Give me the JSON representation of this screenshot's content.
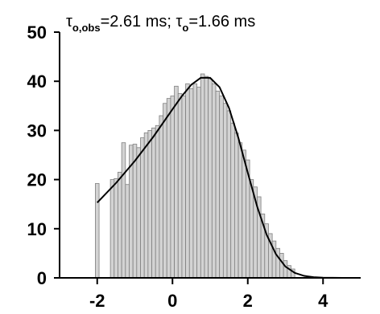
{
  "chart_data": {
    "type": "bar",
    "title": {
      "part1": {
        "sym": "τ",
        "sub": "o,obs",
        "text": "=2.61 ms; "
      },
      "part2": {
        "sym": "τ",
        "sub": "o",
        "text": "=1.66 ms"
      }
    },
    "xlabel": "",
    "ylabel": "",
    "xlim": [
      -3,
      5
    ],
    "ylim": [
      0,
      50
    ],
    "xticks": [
      -2,
      0,
      2,
      4
    ],
    "yticks": [
      0,
      10,
      20,
      30,
      40,
      50
    ],
    "grid": false,
    "bar_color": "#d3d3d3",
    "bin_width": 0.1,
    "series": [
      {
        "type": "histogram",
        "bins": [
          {
            "x": -2.0,
            "value": 19.2
          },
          {
            "x": -1.6,
            "value": 20.0
          },
          {
            "x": -1.5,
            "value": 20.2
          },
          {
            "x": -1.4,
            "value": 21.5
          },
          {
            "x": -1.3,
            "value": 27.5
          },
          {
            "x": -1.2,
            "value": 19.0
          },
          {
            "x": -1.1,
            "value": 27.0
          },
          {
            "x": -1.0,
            "value": 27.2
          },
          {
            "x": -0.9,
            "value": 26.5
          },
          {
            "x": -0.8,
            "value": 28.5
          },
          {
            "x": -0.7,
            "value": 29.5
          },
          {
            "x": -0.6,
            "value": 30.0
          },
          {
            "x": -0.5,
            "value": 30.5
          },
          {
            "x": -0.4,
            "value": 31.0
          },
          {
            "x": -0.3,
            "value": 33.0
          },
          {
            "x": -0.2,
            "value": 35.5
          },
          {
            "x": -0.1,
            "value": 36.5
          },
          {
            "x": 0.0,
            "value": 37.0
          },
          {
            "x": 0.1,
            "value": 39.0
          },
          {
            "x": 0.2,
            "value": 37.5
          },
          {
            "x": 0.3,
            "value": 37.0
          },
          {
            "x": 0.4,
            "value": 39.5
          },
          {
            "x": 0.5,
            "value": 38.5
          },
          {
            "x": 0.6,
            "value": 39.5
          },
          {
            "x": 0.7,
            "value": 38.8
          },
          {
            "x": 0.8,
            "value": 41.5
          },
          {
            "x": 0.9,
            "value": 41.0
          },
          {
            "x": 1.0,
            "value": 40.5
          },
          {
            "x": 1.1,
            "value": 39.5
          },
          {
            "x": 1.2,
            "value": 38.0
          },
          {
            "x": 1.3,
            "value": 37.0
          },
          {
            "x": 1.4,
            "value": 35.5
          },
          {
            "x": 1.5,
            "value": 34.0
          },
          {
            "x": 1.6,
            "value": 31.5
          },
          {
            "x": 1.7,
            "value": 29.5
          },
          {
            "x": 1.8,
            "value": 27.5
          },
          {
            "x": 1.9,
            "value": 26.0
          },
          {
            "x": 2.0,
            "value": 24.0
          },
          {
            "x": 2.1,
            "value": 20.0
          },
          {
            "x": 2.2,
            "value": 18.5
          },
          {
            "x": 2.3,
            "value": 16.5
          },
          {
            "x": 2.4,
            "value": 13.0
          },
          {
            "x": 2.5,
            "value": 11.0
          },
          {
            "x": 2.6,
            "value": 9.0
          },
          {
            "x": 2.7,
            "value": 7.5
          },
          {
            "x": 2.8,
            "value": 6.0
          },
          {
            "x": 2.9,
            "value": 5.0
          },
          {
            "x": 3.0,
            "value": 3.5
          },
          {
            "x": 3.1,
            "value": 2.5
          },
          {
            "x": 3.2,
            "value": 1.8
          }
        ]
      },
      {
        "type": "line",
        "x": [
          -2.0,
          -1.5,
          -1.0,
          -0.5,
          0.0,
          0.25,
          0.5,
          0.75,
          1.0,
          1.25,
          1.5,
          1.75,
          2.0,
          2.25,
          2.5,
          2.75,
          3.0,
          3.25,
          3.5,
          3.75,
          4.0,
          4.5,
          5.0
        ],
        "y": [
          15.3,
          19.3,
          23.8,
          28.8,
          34.3,
          37.0,
          39.3,
          40.7,
          40.7,
          38.8,
          34.6,
          28.5,
          21.4,
          14.5,
          8.8,
          4.8,
          2.3,
          1.0,
          0.4,
          0.15,
          0.05,
          0.0,
          0.0
        ]
      }
    ]
  }
}
